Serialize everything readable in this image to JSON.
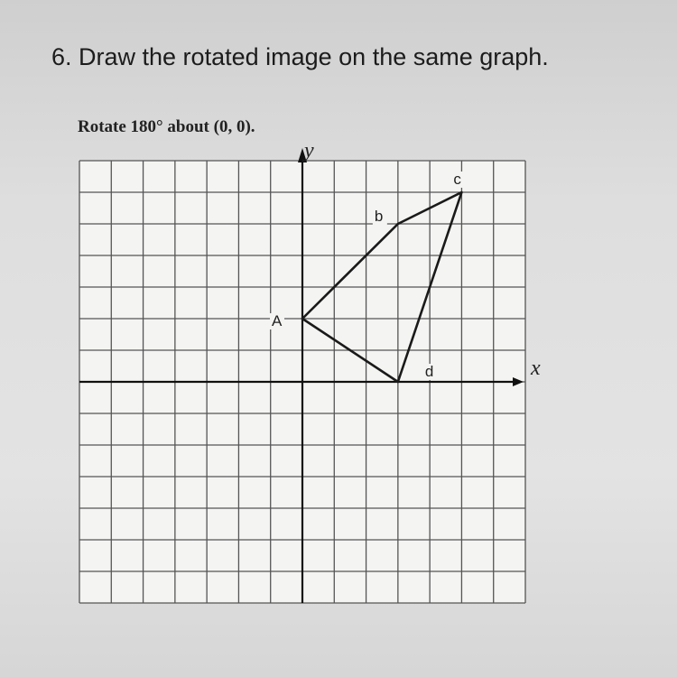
{
  "header": {
    "title": "6. Draw the rotated image on the same graph."
  },
  "instruction": "Rotate 180° about (0, 0).",
  "graph": {
    "x_label": "x",
    "y_label": "y",
    "xlim": [
      -7,
      7
    ],
    "ylim": [
      -7,
      7
    ],
    "points": [
      {
        "label": "A",
        "x": 0,
        "y": 2
      },
      {
        "label": "b",
        "x": 3,
        "y": 5
      },
      {
        "label": "c",
        "x": 5,
        "y": 6
      },
      {
        "label": "d",
        "x": 3,
        "y": 0
      }
    ]
  }
}
